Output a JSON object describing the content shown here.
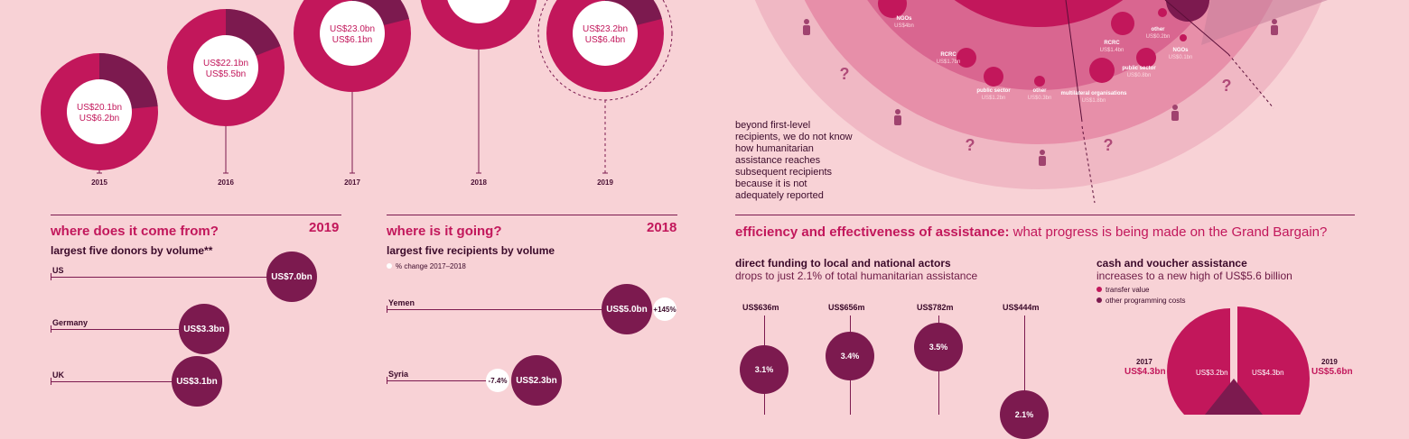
{
  "colors": {
    "bg": "#f8d2d6",
    "magenta": "#c2175b",
    "purple": "#7c1a4f",
    "pink": "#e9a3b6"
  },
  "trend": [
    {
      "year": "2015",
      "total": "US$20.1bn",
      "inner": "US$6.2bn",
      "share": 0.235
    },
    {
      "year": "2016",
      "total": "US$22.1bn",
      "inner": "US$5.5bn",
      "share": 0.19
    },
    {
      "year": "2017",
      "total": "US$23.0bn",
      "inner": "US$6.1bn",
      "share": 0.21
    },
    {
      "year": "2018",
      "total": "",
      "inner": "",
      "share": 0.2
    },
    {
      "year": "2019",
      "total": "US$23.2bn",
      "inner": "US$6.4bn",
      "share": 0.21
    }
  ],
  "flow": {
    "labels": [
      {
        "name": "NGOs",
        "val": "US$4bn"
      },
      {
        "name": "RCRC",
        "val": "US$1.7bn"
      },
      {
        "name": "public sector",
        "val": "US$1.2bn"
      },
      {
        "name": "other",
        "val": "US$0.3bn"
      },
      {
        "name": "RCRC",
        "val": "US$1.4bn"
      },
      {
        "name": "other",
        "val": "US$0.2bn"
      },
      {
        "name": "NGOs",
        "val": "US$0.1bn"
      },
      {
        "name": "public sector",
        "val": "US$0.8bn"
      },
      {
        "name": "multilateral organisations",
        "val": "US$1.8bn"
      }
    ],
    "note": "beyond first-level recipients, we do not know how humanitarian assistance reaches subsequent recipients because it is not adequately reported"
  },
  "donors": {
    "title": "where does it come from?",
    "year": "2019",
    "subtitle": "largest five donors by volume**"
  },
  "recipients": {
    "title": "where is it going?",
    "year": "2018",
    "subtitle": "largest five recipients by volume",
    "legend": "% change 2017–2018"
  },
  "efficiency": {
    "title": "efficiency and effectiveness of assistance:",
    "title_rest": " what progress is being made on the Grand Bargain?",
    "local_title": "direct funding to local and national actors",
    "local_sub": "drops to just 2.1% of total humanitarian assistance",
    "cash_title": "cash and voucher assistance",
    "cash_sub": "increases to a new high of US$5.6 billion",
    "cash_legend": [
      "transfer value",
      "other programming costs"
    ],
    "cash_2017": {
      "year": "2017",
      "val": "US$4.3bn",
      "inner": "US$3.2bn"
    },
    "cash_2019": {
      "year": "2019",
      "val": "US$5.6bn",
      "inner": "US$4.3bn"
    }
  },
  "chart_data": [
    {
      "type": "bar",
      "title": "where does it come from?",
      "subtitle": "largest five donors by volume**",
      "categories": [
        "US",
        "Germany",
        "UK"
      ],
      "values": [
        7.0,
        3.3,
        3.1
      ],
      "labels": [
        "US$7.0bn",
        "US$3.3bn",
        "US$3.1bn"
      ]
    },
    {
      "type": "bar",
      "title": "where is it going?",
      "subtitle": "largest five recipients by volume",
      "categories": [
        "Yemen",
        "Syria"
      ],
      "values": [
        5.0,
        2.3
      ],
      "labels": [
        "US$5.0bn",
        "US$2.3bn"
      ],
      "change": [
        "+145%",
        "-7.4%"
      ]
    },
    {
      "type": "bar",
      "title": "direct funding to local and national actors",
      "categories": [
        "",
        "",
        "",
        ""
      ],
      "values": [
        636,
        656,
        782,
        444
      ],
      "labels": [
        "US$636m",
        "US$656m",
        "US$782m",
        "US$444m"
      ],
      "shares": [
        "3.1%",
        "3.4%",
        "3.5%",
        "2.1%"
      ]
    }
  ]
}
